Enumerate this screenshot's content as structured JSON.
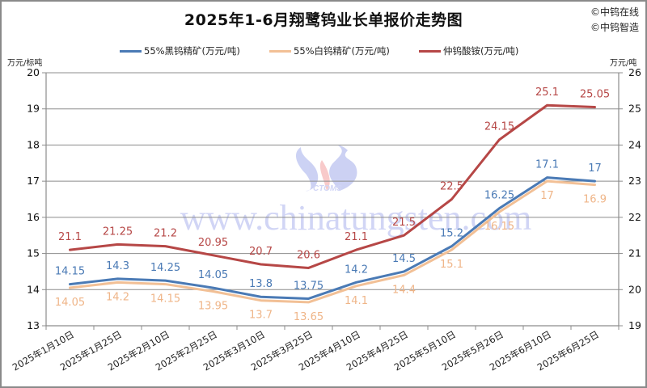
{
  "header": {
    "title": "2025年1-6月翔鹭钨业长单报价走势图",
    "credits": [
      "©中钨在线",
      "©中钨智造"
    ]
  },
  "axes": {
    "left_unit": "万元/标吨",
    "right_unit": "万元/吨"
  },
  "watermark": {
    "logo_text": "CTOMS",
    "url_text": "www.chinatungsten.com"
  },
  "colors": {
    "black_tungsten": "#4a7ab5",
    "white_tungsten": "#f2c096",
    "apt": "#b64746",
    "grid": "#8c8c8c"
  },
  "chart_data": {
    "type": "line",
    "title": "2025年1-6月翔鹭钨业长单报价走势图",
    "xlabel": "",
    "ylabel_left": "万元/标吨",
    "ylabel_right": "万元/吨",
    "ylim_left": [
      13,
      20
    ],
    "ylim_right": [
      19,
      26
    ],
    "yticks_left": [
      13,
      14,
      15,
      16,
      17,
      18,
      19,
      20
    ],
    "yticks_right": [
      19,
      20,
      21,
      22,
      23,
      24,
      25,
      26
    ],
    "grid": true,
    "legend_position": "top",
    "categories": [
      "2025年1月10日",
      "2025年1月25日",
      "2025年2月10日",
      "2025年2月25日",
      "2025年3月10日",
      "2025年3月25日",
      "2025年4月10日",
      "2025年4月25日",
      "2025年5月10日",
      "2025年5月26日",
      "2025年6月10日",
      "2025年6月25日"
    ],
    "series": [
      {
        "name": "55%黑钨精矿(万元/吨)",
        "axis": "left",
        "color": "#4a7ab5",
        "values": [
          14.15,
          14.3,
          14.25,
          14.05,
          13.8,
          13.75,
          14.2,
          14.5,
          15.2,
          16.25,
          17.1,
          17
        ]
      },
      {
        "name": "55%白钨精矿(万元/吨)",
        "axis": "left",
        "color": "#f2c096",
        "values": [
          14.05,
          14.2,
          14.15,
          13.95,
          13.7,
          13.65,
          14.1,
          14.4,
          15.1,
          16.15,
          17,
          16.9
        ]
      },
      {
        "name": "仲钨酸铵(万元/吨)",
        "axis": "right",
        "color": "#b64746",
        "values": [
          21.1,
          21.25,
          21.2,
          20.95,
          20.7,
          20.6,
          21.1,
          21.5,
          22.5,
          24.15,
          25.1,
          25.05
        ]
      }
    ]
  }
}
